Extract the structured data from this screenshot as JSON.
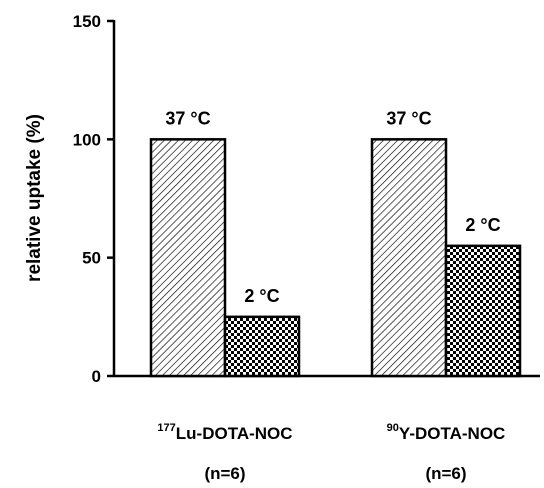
{
  "chart_data": {
    "type": "bar",
    "ylabel": "relative uptake (%)",
    "ylim": [
      0,
      150
    ],
    "yticks": [
      0,
      50,
      100,
      150
    ],
    "grid": false,
    "groups": [
      {
        "sup": "177",
        "name": "Lu-DOTA-NOC",
        "n_label": "(n=6)",
        "bars": [
          {
            "label": "37 °C",
            "value": 100,
            "pattern": "diagonal-hatch"
          },
          {
            "label": "2 °C",
            "value": 25,
            "pattern": "checkerboard"
          }
        ]
      },
      {
        "sup": "90",
        "name": "Y-DOTA-NOC",
        "n_label": "(n=6)",
        "bars": [
          {
            "label": "37 °C",
            "value": 100,
            "pattern": "diagonal-hatch"
          },
          {
            "label": "2 °C",
            "value": 55,
            "pattern": "checkerboard"
          }
        ]
      }
    ]
  }
}
